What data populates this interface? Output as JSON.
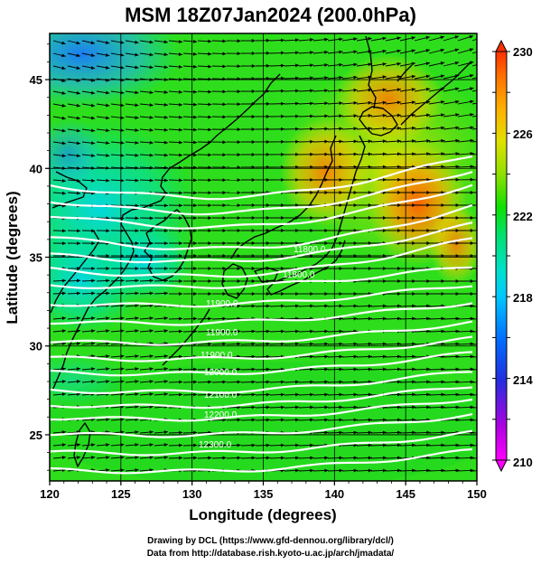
{
  "title": "MSM 18Z07Jan2024 (200.0hPa)",
  "axes": {
    "xlabel": "Longitude (degrees)",
    "ylabel": "Latitude  (degrees)",
    "x_ticks": [
      "120",
      "125",
      "130",
      "135",
      "140",
      "145",
      "150"
    ],
    "y_ticks": [
      "45",
      "40",
      "35",
      "30",
      "25"
    ],
    "x_range": [
      120,
      150
    ],
    "y_range": [
      22.4,
      47.6
    ]
  },
  "colorbar": {
    "labels": [
      "230",
      "226",
      "222",
      "218",
      "214",
      "210"
    ],
    "range": [
      210,
      230
    ],
    "colors": [
      "#ff00ff",
      "#c000e0",
      "#5030e0",
      "#0060ff",
      "#00b0ff",
      "#00e0e0",
      "#00e080",
      "#00e000",
      "#60e000",
      "#b0e000",
      "#ffe000",
      "#ffb000",
      "#ff7000",
      "#ff3000"
    ]
  },
  "contours": {
    "labels": [
      "11800.0",
      "11800.0",
      "11900.0",
      "11900.0",
      "11900.0",
      "12000.0",
      "12100.0",
      "12200.0",
      "12300.0"
    ]
  },
  "credit": {
    "line1": "Drawing by DCL (https://www.gfd-dennou.org/library/dcl/)",
    "line2": "Data from http://database.rish.kyoto-u.ac.jp/arch/jmadata/"
  }
}
